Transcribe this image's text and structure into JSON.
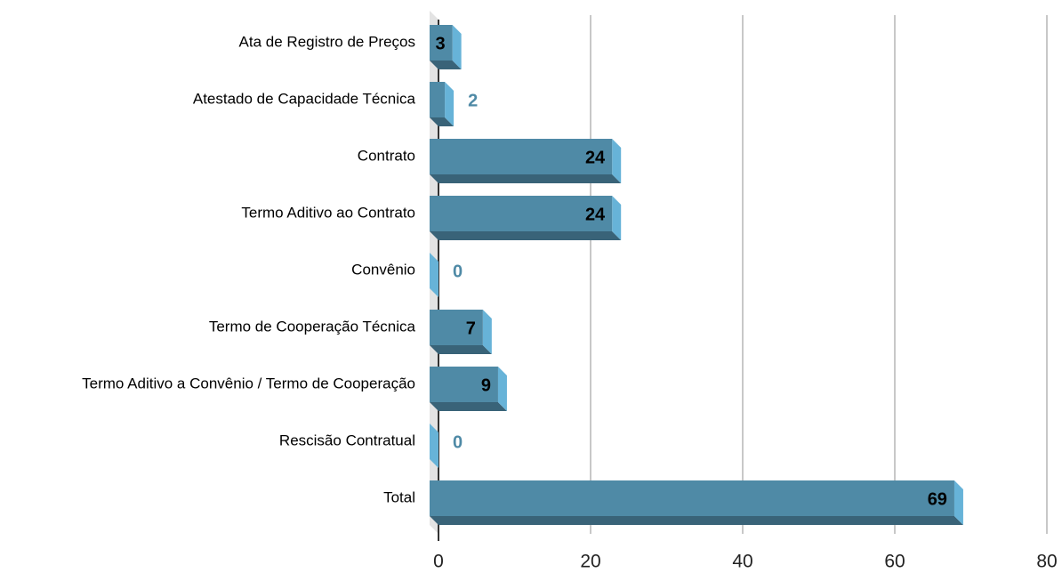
{
  "chart_data": {
    "type": "bar",
    "orientation": "horizontal",
    "categories": [
      "Ata de Registro de Preços",
      "Atestado de Capacidade Técnica",
      "Contrato",
      "Termo Aditivo ao Contrato",
      "Convênio",
      "Termo de Cooperação Técnica",
      "Termo Aditivo a Convênio / Termo de Cooperação",
      "Rescisão Contratual",
      "Total"
    ],
    "values": [
      3,
      2,
      24,
      24,
      0,
      7,
      9,
      0,
      69
    ],
    "color": "#4f8aa6",
    "xlim": [
      0,
      80
    ],
    "xticks": [
      0,
      20,
      40,
      60,
      80
    ],
    "grid": true
  }
}
